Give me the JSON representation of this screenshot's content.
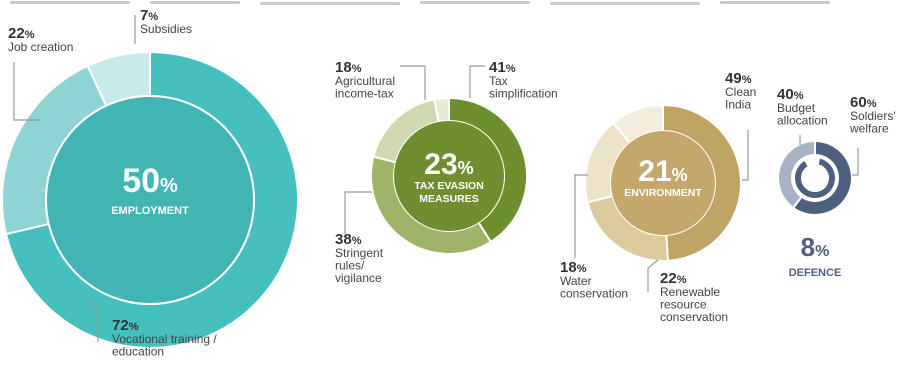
{
  "chart_data": [
    {
      "type": "pie",
      "style": "donut",
      "title": "EMPLOYMENT",
      "total_value": "50%",
      "colors": {
        "main": "#46bfbf",
        "inner": "#41b4b4",
        "mid": "#8fd4d4",
        "light": "#c7e9e9",
        "text": "#ffffff"
      },
      "slices": [
        {
          "label": "Vocational training / education",
          "value": 72,
          "value_text": "72%"
        },
        {
          "label": "Job creation",
          "value": 22,
          "value_text": "22%"
        },
        {
          "label": "Subsidies",
          "value": 7,
          "value_text": "7%"
        }
      ]
    },
    {
      "type": "pie",
      "style": "donut",
      "title": "TAX EVASION MEASURES",
      "title_lines": [
        "TAX EVASION",
        "MEASURES"
      ],
      "total_value": "23%",
      "colors": {
        "main": "#6e8f2e",
        "inner": "#6f8e2f",
        "mid": "#9fb468",
        "light": "#cfd8b0",
        "text": "#ffffff"
      },
      "slices": [
        {
          "label": "Tax simplification",
          "value": 41,
          "value_text": "41%"
        },
        {
          "label": "Stringent rules/ vigilance",
          "value": 38,
          "value_text": "38%"
        },
        {
          "label": "Agricultural income-tax",
          "value": 18,
          "value_text": "18%"
        }
      ]
    },
    {
      "type": "pie",
      "style": "donut",
      "title": "ENVIRONMENT",
      "total_value": "21%",
      "colors": {
        "main": "#c0a463",
        "inner": "#c4a76b",
        "mid": "#dccb9c",
        "light": "#ece3c9",
        "text": "#ffffff"
      },
      "slices": [
        {
          "label": "Clean India",
          "value": 49,
          "value_text": "49%"
        },
        {
          "label": "Renewable resource conservation",
          "value": 22,
          "value_text": "22%"
        },
        {
          "label": "Water conservation",
          "value": 18,
          "value_text": "18%"
        }
      ]
    },
    {
      "type": "pie",
      "style": "donut",
      "title": "DEFENCE",
      "total_value": "8%",
      "colors": {
        "main": "#4d6080",
        "light": "#a7b2c7",
        "text": "#4d6080"
      },
      "slices": [
        {
          "label": "Soldiers' welfare",
          "value": 60,
          "value_text": "60%"
        },
        {
          "label": "Budget allocation",
          "value": 40,
          "value_text": "40%"
        }
      ]
    }
  ]
}
